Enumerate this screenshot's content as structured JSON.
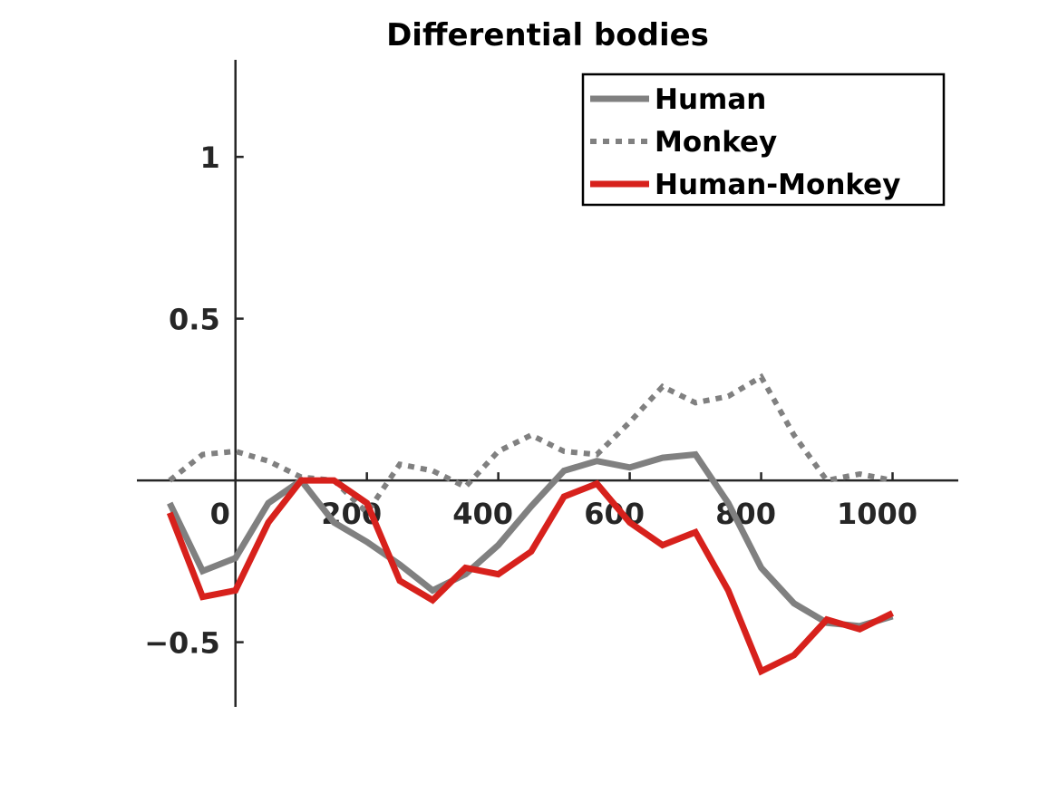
{
  "chart_data": {
    "type": "line",
    "title": "Differential bodies",
    "xlabel": "",
    "ylabel": "",
    "xlim": [
      -150,
      1100
    ],
    "ylim": [
      -0.7,
      1.3
    ],
    "xticks": [
      0,
      200,
      400,
      600,
      800,
      1000
    ],
    "xtick_labels": [
      "0",
      "200",
      "400",
      "600",
      "800",
      "1000"
    ],
    "yticks": [
      -0.5,
      0.5,
      1
    ],
    "ytick_labels": [
      "−0.5",
      "0.5",
      "1"
    ],
    "axis_location": "origin",
    "grid": false,
    "legend_position": "top-right",
    "x": [
      -100,
      -50,
      0,
      50,
      100,
      150,
      200,
      250,
      300,
      350,
      400,
      450,
      500,
      550,
      600,
      650,
      700,
      750,
      800,
      850,
      900,
      950,
      1000
    ],
    "series": [
      {
        "name": "Human",
        "style": "solid",
        "color": "#808080",
        "values": [
          -0.07,
          -0.28,
          -0.24,
          -0.07,
          0.0,
          -0.13,
          -0.19,
          -0.26,
          -0.34,
          -0.29,
          -0.2,
          -0.08,
          0.03,
          0.06,
          0.04,
          0.07,
          0.08,
          -0.07,
          -0.27,
          -0.38,
          -0.44,
          -0.45,
          -0.42
        ]
      },
      {
        "name": "Monkey",
        "style": "dotted",
        "color": "#808080",
        "values": [
          0.0,
          0.08,
          0.09,
          0.06,
          0.01,
          0.0,
          -0.1,
          0.05,
          0.03,
          -0.02,
          0.09,
          0.14,
          0.09,
          0.08,
          0.18,
          0.29,
          0.24,
          0.26,
          0.32,
          0.14,
          0.0,
          0.02,
          0.0
        ]
      },
      {
        "name": "Human-Monkey",
        "style": "solid",
        "color": "#d7211c",
        "values": [
          -0.1,
          -0.36,
          -0.34,
          -0.13,
          0.0,
          0.0,
          -0.07,
          -0.31,
          -0.37,
          -0.27,
          -0.29,
          -0.22,
          -0.05,
          -0.01,
          -0.13,
          -0.2,
          -0.16,
          -0.34,
          -0.59,
          -0.54,
          -0.43,
          -0.46,
          -0.41
        ]
      }
    ]
  }
}
